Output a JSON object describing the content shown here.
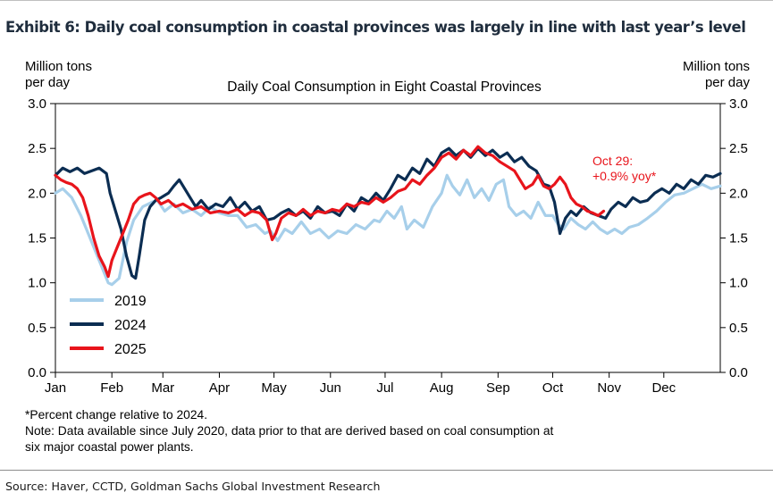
{
  "exhibit_title": "Exhibit 6: Daily coal consumption in coastal provinces was largely in line with last year’s level",
  "colors": {
    "s2019": "#a7cfea",
    "s2024": "#0b2d52",
    "s2025": "#e8141b",
    "annotation": "#e8141b"
  },
  "chart_data": {
    "type": "line",
    "title": "Daily Coal Consumption in Eight Coastal Provinces",
    "ylabel_left": [
      "Million tons",
      "per day"
    ],
    "ylabel_right": [
      "Million tons",
      "per day"
    ],
    "ylim": [
      0,
      3
    ],
    "yticks": [
      "0.0",
      "0.5",
      "1.0",
      "1.5",
      "2.0",
      "2.5",
      "3.0"
    ],
    "ytick_values": [
      0,
      0.5,
      1,
      1.5,
      2,
      2.5,
      3
    ],
    "xlim": [
      0,
      365
    ],
    "month_labels": [
      "Jan",
      "Feb",
      "Mar",
      "Apr",
      "May",
      "Jun",
      "Jul",
      "Aug",
      "Sep",
      "Oct",
      "Nov",
      "Dec"
    ],
    "month_starts": [
      0,
      31,
      59,
      90,
      120,
      151,
      181,
      212,
      243,
      273,
      304,
      334
    ],
    "legend": [
      "2019",
      "2024",
      "2025"
    ],
    "legend_position": "lower-left",
    "annotation": {
      "lines": [
        "Oct 29:",
        "+0.9% yoy*"
      ],
      "x_day": 301,
      "y_value": 1.8
    },
    "series": [
      {
        "name": "2019",
        "color": "#a7cfea",
        "points": [
          [
            0,
            2.0
          ],
          [
            4,
            2.05
          ],
          [
            9,
            1.95
          ],
          [
            14,
            1.75
          ],
          [
            20,
            1.45
          ],
          [
            25,
            1.2
          ],
          [
            29,
            1.0
          ],
          [
            31,
            0.98
          ],
          [
            35,
            1.05
          ],
          [
            39,
            1.45
          ],
          [
            43,
            1.7
          ],
          [
            48,
            1.85
          ],
          [
            53,
            1.9
          ],
          [
            56,
            1.92
          ],
          [
            60,
            1.8
          ],
          [
            65,
            1.88
          ],
          [
            70,
            1.78
          ],
          [
            75,
            1.82
          ],
          [
            80,
            1.75
          ],
          [
            85,
            1.85
          ],
          [
            90,
            1.78
          ],
          [
            95,
            1.75
          ],
          [
            100,
            1.75
          ],
          [
            105,
            1.62
          ],
          [
            110,
            1.65
          ],
          [
            115,
            1.55
          ],
          [
            118,
            1.58
          ],
          [
            122,
            1.47
          ],
          [
            126,
            1.6
          ],
          [
            130,
            1.55
          ],
          [
            135,
            1.68
          ],
          [
            140,
            1.55
          ],
          [
            145,
            1.6
          ],
          [
            150,
            1.5
          ],
          [
            155,
            1.58
          ],
          [
            160,
            1.55
          ],
          [
            165,
            1.65
          ],
          [
            170,
            1.6
          ],
          [
            175,
            1.7
          ],
          [
            178,
            1.68
          ],
          [
            182,
            1.8
          ],
          [
            186,
            1.72
          ],
          [
            190,
            1.85
          ],
          [
            193,
            1.6
          ],
          [
            197,
            1.7
          ],
          [
            202,
            1.62
          ],
          [
            207,
            1.85
          ],
          [
            212,
            2.0
          ],
          [
            215,
            2.2
          ],
          [
            218,
            2.08
          ],
          [
            222,
            1.98
          ],
          [
            226,
            2.15
          ],
          [
            230,
            1.95
          ],
          [
            234,
            2.05
          ],
          [
            238,
            1.92
          ],
          [
            242,
            2.1
          ],
          [
            246,
            2.15
          ],
          [
            249,
            1.85
          ],
          [
            253,
            1.75
          ],
          [
            257,
            1.8
          ],
          [
            261,
            1.72
          ],
          [
            265,
            1.9
          ],
          [
            269,
            1.75
          ],
          [
            273,
            1.75
          ],
          [
            276,
            1.65
          ],
          [
            279,
            1.6
          ],
          [
            283,
            1.72
          ],
          [
            287,
            1.65
          ],
          [
            291,
            1.6
          ],
          [
            295,
            1.68
          ],
          [
            299,
            1.6
          ],
          [
            303,
            1.55
          ],
          [
            307,
            1.6
          ],
          [
            311,
            1.55
          ],
          [
            315,
            1.62
          ],
          [
            320,
            1.65
          ],
          [
            325,
            1.72
          ],
          [
            330,
            1.8
          ],
          [
            335,
            1.9
          ],
          [
            340,
            1.98
          ],
          [
            345,
            2.0
          ],
          [
            350,
            2.05
          ],
          [
            355,
            2.1
          ],
          [
            360,
            2.05
          ],
          [
            365,
            2.08
          ]
        ]
      },
      {
        "name": "2024",
        "color": "#0b2d52",
        "points": [
          [
            0,
            2.2
          ],
          [
            4,
            2.28
          ],
          [
            8,
            2.24
          ],
          [
            12,
            2.28
          ],
          [
            16,
            2.22
          ],
          [
            20,
            2.25
          ],
          [
            24,
            2.28
          ],
          [
            28,
            2.22
          ],
          [
            30,
            2.0
          ],
          [
            33,
            1.8
          ],
          [
            36,
            1.6
          ],
          [
            39,
            1.3
          ],
          [
            42,
            1.08
          ],
          [
            44,
            1.05
          ],
          [
            46,
            1.3
          ],
          [
            49,
            1.7
          ],
          [
            52,
            1.85
          ],
          [
            55,
            1.92
          ],
          [
            58,
            1.95
          ],
          [
            62,
            2.0
          ],
          [
            65,
            2.08
          ],
          [
            68,
            2.15
          ],
          [
            71,
            2.05
          ],
          [
            74,
            1.95
          ],
          [
            77,
            1.85
          ],
          [
            80,
            1.92
          ],
          [
            84,
            1.82
          ],
          [
            88,
            1.88
          ],
          [
            92,
            1.85
          ],
          [
            96,
            1.95
          ],
          [
            100,
            1.82
          ],
          [
            104,
            1.9
          ],
          [
            108,
            1.8
          ],
          [
            112,
            1.85
          ],
          [
            116,
            1.7
          ],
          [
            120,
            1.72
          ],
          [
            124,
            1.78
          ],
          [
            128,
            1.82
          ],
          [
            132,
            1.75
          ],
          [
            136,
            1.8
          ],
          [
            140,
            1.72
          ],
          [
            144,
            1.85
          ],
          [
            148,
            1.78
          ],
          [
            152,
            1.8
          ],
          [
            156,
            1.75
          ],
          [
            160,
            1.88
          ],
          [
            164,
            1.8
          ],
          [
            168,
            1.95
          ],
          [
            172,
            1.9
          ],
          [
            176,
            2.0
          ],
          [
            180,
            1.92
          ],
          [
            184,
            2.05
          ],
          [
            188,
            2.2
          ],
          [
            192,
            2.15
          ],
          [
            196,
            2.28
          ],
          [
            200,
            2.22
          ],
          [
            204,
            2.38
          ],
          [
            208,
            2.3
          ],
          [
            212,
            2.45
          ],
          [
            216,
            2.5
          ],
          [
            220,
            2.42
          ],
          [
            224,
            2.48
          ],
          [
            228,
            2.4
          ],
          [
            232,
            2.5
          ],
          [
            236,
            2.42
          ],
          [
            240,
            2.48
          ],
          [
            244,
            2.4
          ],
          [
            248,
            2.45
          ],
          [
            252,
            2.35
          ],
          [
            256,
            2.4
          ],
          [
            260,
            2.3
          ],
          [
            264,
            2.25
          ],
          [
            268,
            2.1
          ],
          [
            271,
            2.08
          ],
          [
            274,
            1.9
          ],
          [
            277,
            1.55
          ],
          [
            280,
            1.72
          ],
          [
            283,
            1.8
          ],
          [
            286,
            1.75
          ],
          [
            290,
            1.85
          ],
          [
            294,
            1.78
          ],
          [
            298,
            1.75
          ],
          [
            302,
            1.72
          ],
          [
            305,
            1.82
          ],
          [
            309,
            1.9
          ],
          [
            313,
            1.85
          ],
          [
            317,
            1.95
          ],
          [
            321,
            1.9
          ],
          [
            325,
            1.92
          ],
          [
            329,
            2.0
          ],
          [
            333,
            2.05
          ],
          [
            337,
            2.0
          ],
          [
            341,
            2.1
          ],
          [
            345,
            2.05
          ],
          [
            349,
            2.15
          ],
          [
            353,
            2.1
          ],
          [
            357,
            2.2
          ],
          [
            361,
            2.18
          ],
          [
            365,
            2.22
          ]
        ]
      },
      {
        "name": "2025",
        "color": "#e8141b",
        "points": [
          [
            0,
            2.2
          ],
          [
            3,
            2.15
          ],
          [
            6,
            2.12
          ],
          [
            9,
            2.1
          ],
          [
            12,
            2.05
          ],
          [
            15,
            1.95
          ],
          [
            18,
            1.75
          ],
          [
            21,
            1.5
          ],
          [
            24,
            1.3
          ],
          [
            27,
            1.18
          ],
          [
            29,
            1.07
          ],
          [
            31,
            1.25
          ],
          [
            34,
            1.4
          ],
          [
            37,
            1.55
          ],
          [
            40,
            1.7
          ],
          [
            43,
            1.88
          ],
          [
            46,
            1.95
          ],
          [
            49,
            1.98
          ],
          [
            52,
            2.0
          ],
          [
            55,
            1.95
          ],
          [
            58,
            1.88
          ],
          [
            62,
            1.92
          ],
          [
            66,
            1.85
          ],
          [
            70,
            1.88
          ],
          [
            75,
            1.82
          ],
          [
            80,
            1.85
          ],
          [
            85,
            1.78
          ],
          [
            90,
            1.8
          ],
          [
            95,
            1.78
          ],
          [
            100,
            1.82
          ],
          [
            104,
            1.75
          ],
          [
            108,
            1.8
          ],
          [
            112,
            1.78
          ],
          [
            116,
            1.7
          ],
          [
            119,
            1.48
          ],
          [
            121,
            1.55
          ],
          [
            124,
            1.72
          ],
          [
            128,
            1.78
          ],
          [
            132,
            1.75
          ],
          [
            136,
            1.82
          ],
          [
            140,
            1.75
          ],
          [
            144,
            1.8
          ],
          [
            148,
            1.78
          ],
          [
            152,
            1.82
          ],
          [
            156,
            1.8
          ],
          [
            160,
            1.88
          ],
          [
            164,
            1.85
          ],
          [
            168,
            1.9
          ],
          [
            172,
            1.88
          ],
          [
            176,
            1.95
          ],
          [
            180,
            1.9
          ],
          [
            184,
            1.95
          ],
          [
            188,
            2.02
          ],
          [
            192,
            2.05
          ],
          [
            196,
            2.15
          ],
          [
            200,
            2.1
          ],
          [
            204,
            2.2
          ],
          [
            208,
            2.28
          ],
          [
            212,
            2.4
          ],
          [
            216,
            2.45
          ],
          [
            220,
            2.38
          ],
          [
            224,
            2.48
          ],
          [
            228,
            2.42
          ],
          [
            232,
            2.52
          ],
          [
            236,
            2.45
          ],
          [
            240,
            2.42
          ],
          [
            244,
            2.35
          ],
          [
            248,
            2.3
          ],
          [
            252,
            2.25
          ],
          [
            255,
            2.15
          ],
          [
            258,
            2.05
          ],
          [
            262,
            2.1
          ],
          [
            265,
            2.2
          ],
          [
            268,
            2.08
          ],
          [
            271,
            2.05
          ],
          [
            274,
            2.1
          ],
          [
            277,
            2.18
          ],
          [
            280,
            2.1
          ],
          [
            283,
            1.95
          ],
          [
            286,
            1.88
          ],
          [
            289,
            1.85
          ],
          [
            292,
            1.8
          ],
          [
            295,
            1.78
          ],
          [
            298,
            1.75
          ],
          [
            301,
            1.8
          ]
        ]
      }
    ]
  },
  "notes": [
    "*Percent change relative to 2024.",
    "Note: Data available since July 2020, data prior to that are derived based on coal consumption at",
    "six major coastal power plants."
  ],
  "source": "Source: Haver, CCTD, Goldman Sachs Global Investment Research"
}
